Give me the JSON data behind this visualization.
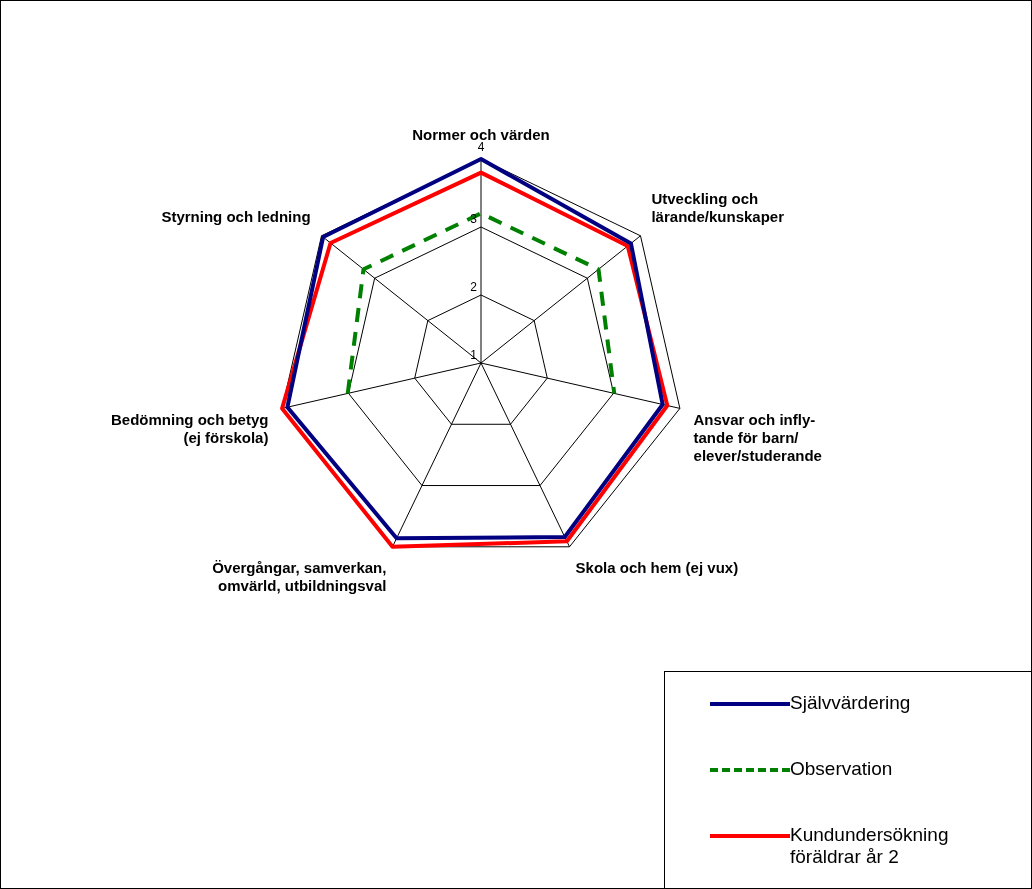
{
  "chart_data": {
    "type": "radar",
    "categories": [
      "Normer och värden",
      "Utveckling och\nlärande/kunskaper",
      "Ansvar och infly-\ntande för barn/\nelever/studerande",
      "Skola och hem (ej vux)",
      "Övergångar, samverkan,\nomvärld, utbildningsval",
      "Bedömning och betyg\n(ej förskola)",
      "Styrning och ledning"
    ],
    "series": [
      {
        "name": "Självvärdering",
        "color": "#000080",
        "line_style": "solid",
        "values": [
          4.0,
          3.82,
          3.74,
          3.84,
          3.86,
          3.92,
          3.97
        ]
      },
      {
        "name": "Observation",
        "color": "#008000",
        "line_style": "dashed",
        "values": [
          3.2,
          3.21,
          3.01,
          null,
          null,
          3.01,
          3.21
        ]
      },
      {
        "name": "Kundundersökning\nföräldrar år 2",
        "color": "#ff0000",
        "line_style": "solid",
        "values": [
          3.8,
          3.76,
          3.81,
          3.91,
          4.0,
          4.0,
          3.83
        ]
      }
    ],
    "ylim": [
      1,
      4
    ],
    "yticks": [
      1,
      2,
      3,
      4
    ],
    "grid": true,
    "legend": "bottom right",
    "marker": "none"
  }
}
